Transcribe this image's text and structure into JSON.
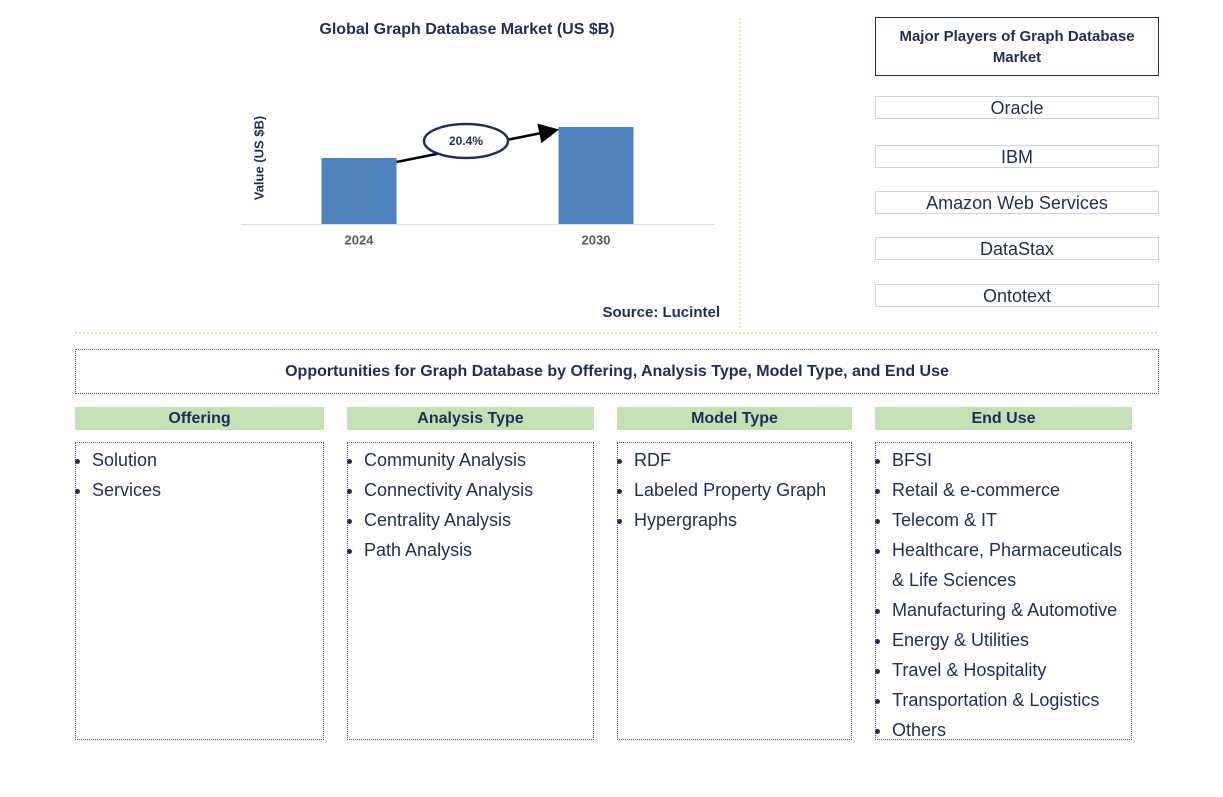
{
  "chart_data": {
    "type": "bar",
    "title": "Global Graph Database Market (US $B)",
    "y_label": "Value (US $B)",
    "categories": [
      "2024",
      "2030"
    ],
    "values": [
      66,
      97
    ],
    "color": "#4f81bd",
    "ylim": [
      0,
      100
    ],
    "annotation": "20.4%",
    "source": "Source: Lucintel"
  },
  "players": {
    "title": "Major Players of Graph Database Market",
    "items": [
      "Oracle",
      "IBM",
      "Amazon Web Services",
      "DataStax",
      "Ontotext"
    ]
  },
  "opportunities": {
    "title": "Opportunities for Graph Database by Offering, Analysis Type, Model Type, and End Use",
    "columns": [
      {
        "header": "Offering",
        "items": [
          "Solution",
          "Services"
        ]
      },
      {
        "header": "Analysis Type",
        "items": [
          "Community Analysis",
          "Connectivity Analysis",
          "Centrality Analysis",
          "Path Analysis"
        ]
      },
      {
        "header": "Model Type",
        "items": [
          "RDF",
          "Labeled Property Graph",
          "Hypergraphs"
        ]
      },
      {
        "header": "End Use",
        "items": [
          "BFSI",
          "Retail & e-commerce",
          "Telecom & IT",
          "Healthcare, Pharmaceuticals & Life Sciences",
          "Manufacturing & Automotive",
          "Energy & Utilities",
          "Travel & Hospitality",
          "Transportation & Logistics",
          "Others"
        ]
      }
    ]
  }
}
